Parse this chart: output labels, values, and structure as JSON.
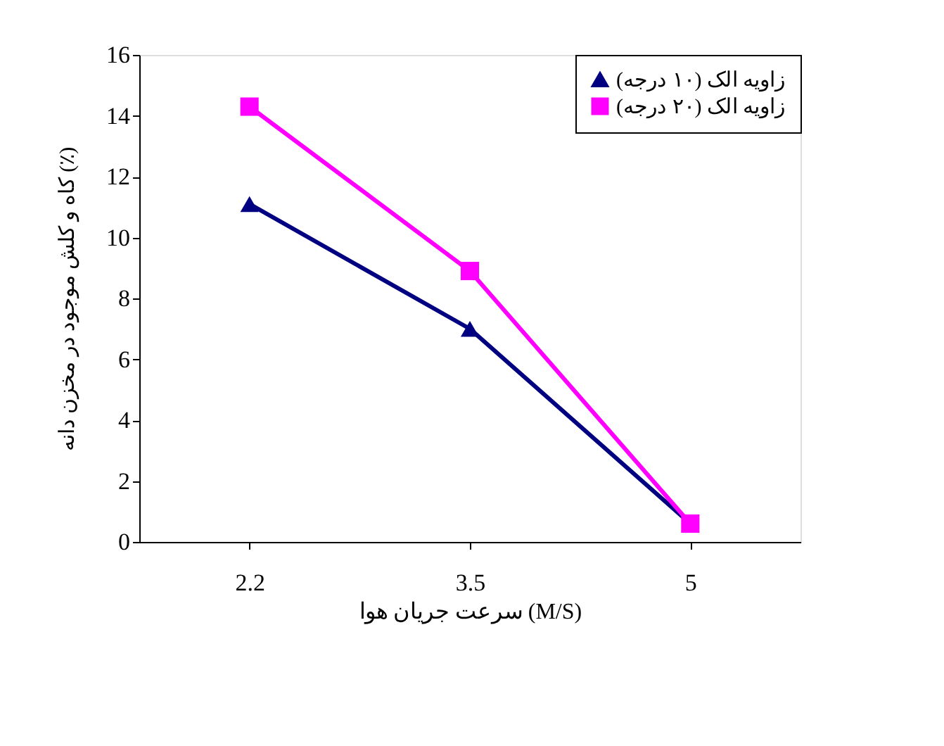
{
  "chart_data": {
    "type": "line",
    "xlabel": "سرعت جریان هوا (M/S)",
    "ylabel": "کاه و کلش موجود در مخزن دانه (٪)",
    "categories": [
      "2.2",
      "3.5",
      "5"
    ],
    "series": [
      {
        "name": "زاویه الک (۱۰ درجه)",
        "color": "#000080",
        "marker": "triangle",
        "values": [
          11.1,
          7.0,
          0.6
        ]
      },
      {
        "name": "زاویه الک (۲۰ درجه)",
        "color": "#ff00ff",
        "marker": "square",
        "values": [
          14.3,
          8.9,
          0.6
        ]
      }
    ],
    "ylim": [
      0,
      16
    ],
    "yticks": [
      0,
      2,
      4,
      6,
      8,
      10,
      12,
      14,
      16
    ],
    "grid": false,
    "legend": "top right",
    "line_style": "solid"
  }
}
